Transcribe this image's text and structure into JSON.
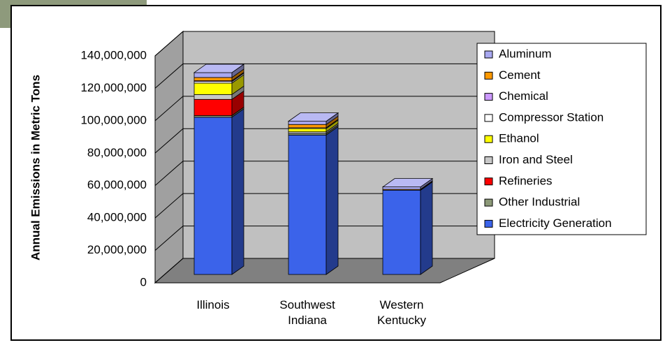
{
  "chart_data": {
    "type": "bar3d-stacked",
    "y_label": "Annual Emissions in Metric Tons",
    "categories": [
      "Illinois",
      "Southwest Indiana",
      "Western Kentucky"
    ],
    "series": [
      {
        "name": "Electricity Generation",
        "color": "#3b63ea",
        "values": [
          97000000,
          86000000,
          52000000
        ]
      },
      {
        "name": "Other Industrial",
        "color": "#8c9978",
        "values": [
          1000000,
          1000000,
          0
        ]
      },
      {
        "name": "Refineries",
        "color": "#ff0000",
        "values": [
          10000000,
          0,
          0
        ]
      },
      {
        "name": "Iron and Steel",
        "color": "#c8c8c8",
        "values": [
          3000000,
          1000000,
          0
        ]
      },
      {
        "name": "Ethanol",
        "color": "#ffff00",
        "values": [
          7000000,
          2000000,
          0
        ]
      },
      {
        "name": "Compressor Station",
        "color": "#ffffff",
        "values": [
          1000000,
          500000,
          0
        ]
      },
      {
        "name": "Chemical",
        "color": "#cc99ff",
        "values": [
          500000,
          0,
          0
        ]
      },
      {
        "name": "Cement",
        "color": "#ff9900",
        "values": [
          2000000,
          2000000,
          500000
        ]
      },
      {
        "name": "Aluminum",
        "color": "#a8a8f0",
        "values": [
          3000000,
          2000000,
          1500000
        ]
      }
    ],
    "ylim": [
      0,
      140000000
    ],
    "yticks": [
      0,
      {
        "value": 20000000,
        "label": "20,000,000"
      },
      {
        "value": 40000000,
        "label": "40,000,000"
      },
      {
        "value": 60000000,
        "label": "60,000,000"
      },
      {
        "value": 80000000,
        "label": "80,000,000"
      },
      {
        "value": 100000000,
        "label": "100,000,000"
      },
      {
        "value": 120000000,
        "label": "120,000,000"
      },
      {
        "value": 140000000,
        "label": "140,000,000"
      }
    ],
    "grid": true,
    "legend": "right"
  }
}
